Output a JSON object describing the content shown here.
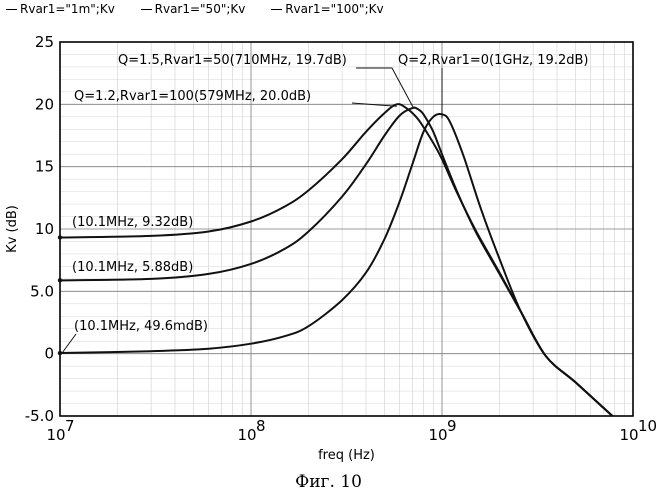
{
  "legend": [
    {
      "label": "Rvar1=\"1m\";Kv"
    },
    {
      "label": "Rvar1=\"50\";Kv"
    },
    {
      "label": "Rvar1=\"100\";Kv"
    }
  ],
  "caption": "Фиг. 10",
  "chart_data": {
    "type": "line",
    "xlabel": "freq (Hz)",
    "ylabel": "Kv (dB)",
    "x_scale": "log",
    "xlim": [
      10000000,
      10000000000
    ],
    "ylim": [
      -5,
      25
    ],
    "grid": true,
    "legend_position": "top-left",
    "y_ticks": [
      {
        "value": -5,
        "label": "-5.0"
      },
      {
        "value": 0,
        "label": "0"
      },
      {
        "value": 5,
        "label": "5.0"
      },
      {
        "value": 10,
        "label": "10"
      },
      {
        "value": 15,
        "label": "15"
      },
      {
        "value": 20,
        "label": "20"
      },
      {
        "value": 25,
        "label": "25"
      }
    ],
    "x_ticks": [
      {
        "value": 10000000,
        "base": "10",
        "exp": "7"
      },
      {
        "value": 100000000,
        "base": "10",
        "exp": "8"
      },
      {
        "value": 1000000000,
        "base": "10",
        "exp": "9"
      },
      {
        "value": 10000000000,
        "base": "10",
        "exp": "10"
      }
    ],
    "series": [
      {
        "name": "Rvar1=\"1m\";Kv",
        "x": [
          10000000,
          30000000,
          60000000,
          100000000,
          150000000,
          200000000,
          300000000,
          400000000,
          500000000,
          600000000,
          700000000,
          800000000,
          900000000,
          1000000000,
          1100000000,
          1300000000,
          1600000000,
          2000000000,
          2600000000,
          3500000000,
          5000000000,
          7800000000
        ],
        "y": [
          0.05,
          0.2,
          0.4,
          0.8,
          1.4,
          2.2,
          4.3,
          6.5,
          9.2,
          12.2,
          15.2,
          17.8,
          19.0,
          19.2,
          18.6,
          15.8,
          11.6,
          7.6,
          3.3,
          -0.2,
          -2.3,
          -5.0
        ]
      },
      {
        "name": "Rvar1=\"50\";Kv",
        "x": [
          10000000,
          30000000,
          60000000,
          100000000,
          150000000,
          200000000,
          300000000,
          400000000,
          500000000,
          600000000,
          700000000,
          750000000,
          800000000,
          900000000,
          1000000000,
          1200000000,
          1500000000,
          2000000000,
          2600000000,
          3500000000,
          5000000000,
          7800000000
        ],
        "y": [
          5.88,
          6.0,
          6.4,
          7.2,
          8.4,
          9.8,
          12.6,
          15.2,
          17.5,
          19.1,
          19.7,
          19.6,
          19.2,
          17.8,
          16.0,
          13.0,
          9.8,
          6.4,
          3.3,
          -0.2,
          -2.3,
          -5.0
        ]
      },
      {
        "name": "Rvar1=\"100\";Kv",
        "x": [
          10000000,
          30000000,
          60000000,
          100000000,
          150000000,
          200000000,
          300000000,
          400000000,
          500000000,
          579000000,
          650000000,
          750000000,
          900000000,
          1000000000,
          1200000000,
          1500000000,
          2000000000,
          2600000000,
          3500000000,
          5000000000,
          7800000000
        ],
        "y": [
          9.32,
          9.45,
          9.8,
          10.6,
          11.8,
          13.1,
          15.6,
          17.8,
          19.3,
          20.0,
          19.7,
          18.8,
          16.9,
          15.6,
          12.9,
          9.9,
          6.5,
          3.3,
          -0.2,
          -2.3,
          -5.0
        ]
      }
    ],
    "annotations": [
      {
        "text": "Q=1.5,Rvar1=50(710MHz, 19.7dB)",
        "x": 710000000,
        "y": 19.7
      },
      {
        "text": "Q=2,Rvar1=0(1GHz, 19.2dB)",
        "x": 1000000000,
        "y": 19.2
      },
      {
        "text": "Q=1.2,Rvar1=100(579MHz, 20.0dB)",
        "x": 579000000,
        "y": 20.0
      },
      {
        "text": "(10.1MHz, 9.32dB)",
        "x": 10100000,
        "y": 9.32
      },
      {
        "text": "(10.1MHz, 5.88dB)",
        "x": 10100000,
        "y": 5.88
      },
      {
        "text": "(10.1MHz, 49.6mdB)",
        "x": 10100000,
        "y": 0.0496
      }
    ]
  }
}
